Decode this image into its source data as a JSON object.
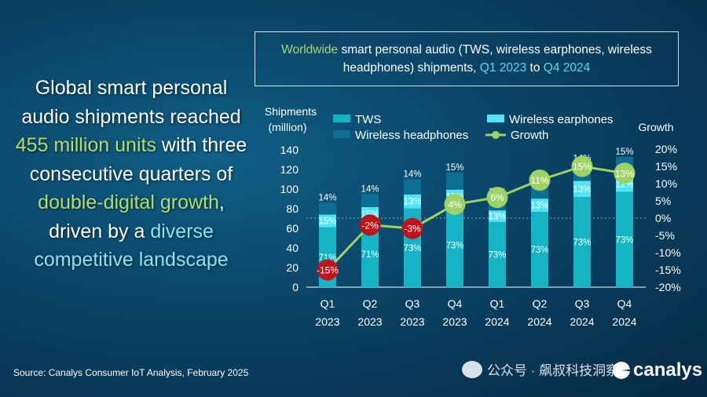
{
  "headline": {
    "p1": "Global smart personal audio shipments reached ",
    "h1": "455 million units",
    "p2": " with three consecutive quarters of ",
    "h2": "double-digital growth",
    "p3": ", driven by a ",
    "h3": "diverse competitive landscape"
  },
  "title": {
    "w1": "Worldwide",
    "w2": " smart personal audio (TWS, wireless earphones, wireless headphones) shipments, ",
    "w3": "Q1 2023",
    "w4": " to ",
    "w5": "Q4 2024"
  },
  "source": "Source: Canalys Consumer IoT Analysis, February 2025",
  "watermark": "公众号 · 飙叔科技洞察",
  "logo": "canalys",
  "colors": {
    "tws": "#14b4c4",
    "earphones": "#52e4f6",
    "headphones": "#0e6f95",
    "growth": "#9ed264",
    "growth_neg": "#c0141c"
  },
  "chart_data": {
    "type": "bar",
    "stacked": true,
    "categories": [
      [
        "Q1",
        "2023"
      ],
      [
        "Q2",
        "2023"
      ],
      [
        "Q3",
        "2023"
      ],
      [
        "Q4",
        "2023"
      ],
      [
        "Q1",
        "2024"
      ],
      [
        "Q2",
        "2024"
      ],
      [
        "Q3",
        "2024"
      ],
      [
        "Q4",
        "2024"
      ]
    ],
    "totals": [
      86,
      95,
      110,
      117,
      91,
      105,
      126,
      133
    ],
    "series": [
      {
        "name": "TWS",
        "percent_labels": [
          "71%",
          "71%",
          "73%",
          "73%",
          "73%",
          "73%",
          "73%",
          "73%"
        ],
        "share": [
          0.71,
          0.71,
          0.73,
          0.73,
          0.73,
          0.73,
          0.73,
          0.73
        ]
      },
      {
        "name": "Wireless earphones",
        "percent_labels": [
          "15%",
          "15%",
          "13%",
          "12%",
          "13%",
          "13%",
          "13%",
          "12%"
        ],
        "share": [
          0.15,
          0.15,
          0.13,
          0.12,
          0.13,
          0.13,
          0.13,
          0.12
        ]
      },
      {
        "name": "Wireless headphones",
        "percent_labels": [
          "14%",
          "14%",
          "14%",
          "15%",
          "15%",
          "14%",
          "14%",
          "15%"
        ],
        "share": [
          0.14,
          0.14,
          0.14,
          0.15,
          0.15,
          0.14,
          0.14,
          0.15
        ]
      }
    ],
    "growth": {
      "name": "Growth",
      "values": [
        -15,
        -2,
        -3,
        4,
        6,
        11,
        15,
        13
      ],
      "labels": [
        "-15%",
        "-2%",
        "-3%",
        "4%",
        "6%",
        "11%",
        "15%",
        "13%"
      ]
    },
    "ylabel": [
      "Shipments",
      "(million)"
    ],
    "y2label": "Growth",
    "ylim": [
      0,
      140
    ],
    "yticks": [
      "0",
      "20",
      "40",
      "60",
      "80",
      "100",
      "120",
      "140"
    ],
    "y2lim": [
      -20,
      20
    ],
    "y2ticks": [
      "20%",
      "15%",
      "10%",
      "5%",
      "0%",
      "-5%",
      "-10%",
      "-15%",
      "-20%"
    ],
    "legend": [
      "TWS",
      "Wireless earphones",
      "Wireless headphones",
      "Growth"
    ],
    "legend_position": "top"
  }
}
